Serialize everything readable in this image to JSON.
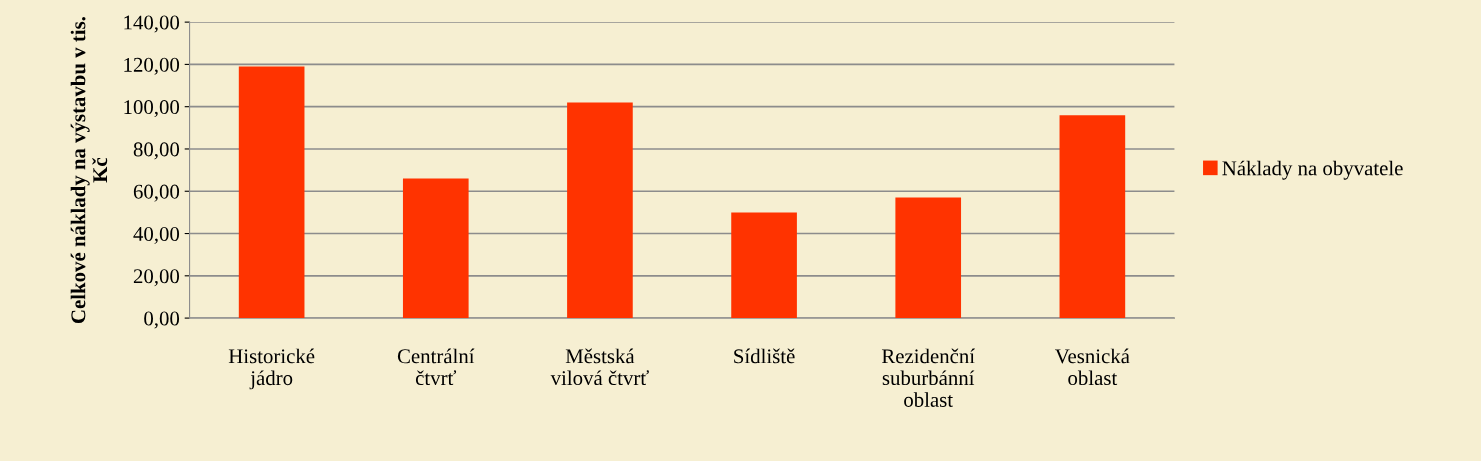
{
  "chart_data": {
    "type": "bar",
    "categories": [
      "Historické\njádro",
      "Centrální\nčtvrť",
      "Městská\nvilová čtvrť",
      "Sídliště",
      "Rezidenční\nsuburbánní\noblast",
      "Vesnická\noblast"
    ],
    "series": [
      {
        "name": "Náklady na obyvatele",
        "color": "#ff3300",
        "values": [
          119,
          66,
          102,
          50,
          57,
          96
        ]
      }
    ],
    "ylabel": "Celkové náklady na výstavbu v tis.\nKč",
    "ylim": [
      0,
      140
    ],
    "yticks": [
      {
        "value": 0,
        "label": "0,00"
      },
      {
        "value": 20,
        "label": "20,00"
      },
      {
        "value": 40,
        "label": "40,00"
      },
      {
        "value": 60,
        "label": "60,00"
      },
      {
        "value": 80,
        "label": "80,00"
      },
      {
        "value": 100,
        "label": "100,00"
      },
      {
        "value": 120,
        "label": "120,00"
      },
      {
        "value": 140,
        "label": "140,00"
      }
    ],
    "grid": "y",
    "legend": "right"
  }
}
